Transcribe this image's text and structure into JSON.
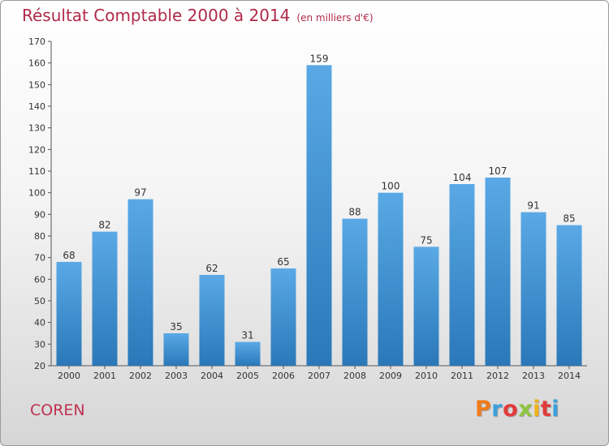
{
  "header": {
    "title": "Résultat Comptable 2000 à 2014",
    "unit": "(en milliers d'€)"
  },
  "footer": {
    "commune": "COREN",
    "logo_text": "Proxiti",
    "logo_colors": [
      "#f07c1a",
      "#3aa0dc",
      "#e23a3a",
      "#8cc63e",
      "#f0b41a",
      "#e23a3a",
      "#3aa0dc"
    ]
  },
  "colors": {
    "bar_top": "#5aa9e6",
    "bar_bottom": "#2a78b8",
    "title": "#b02a4a"
  },
  "chart_data": {
    "type": "bar",
    "title": "Résultat Comptable 2000 à 2014",
    "subtitle": "(en milliers d'€)",
    "xlabel": "",
    "ylabel": "",
    "categories": [
      "2000",
      "2001",
      "2002",
      "2003",
      "2004",
      "2005",
      "2006",
      "2007",
      "2008",
      "2009",
      "2010",
      "2011",
      "2012",
      "2013",
      "2014"
    ],
    "values": [
      68,
      82,
      97,
      35,
      62,
      31,
      65,
      159,
      88,
      100,
      75,
      104,
      107,
      91,
      85
    ],
    "ylim": [
      20,
      170
    ],
    "yticks": [
      20,
      30,
      40,
      50,
      60,
      70,
      80,
      90,
      100,
      110,
      120,
      130,
      140,
      150,
      160,
      170
    ],
    "grid": false,
    "data_labels": true
  }
}
